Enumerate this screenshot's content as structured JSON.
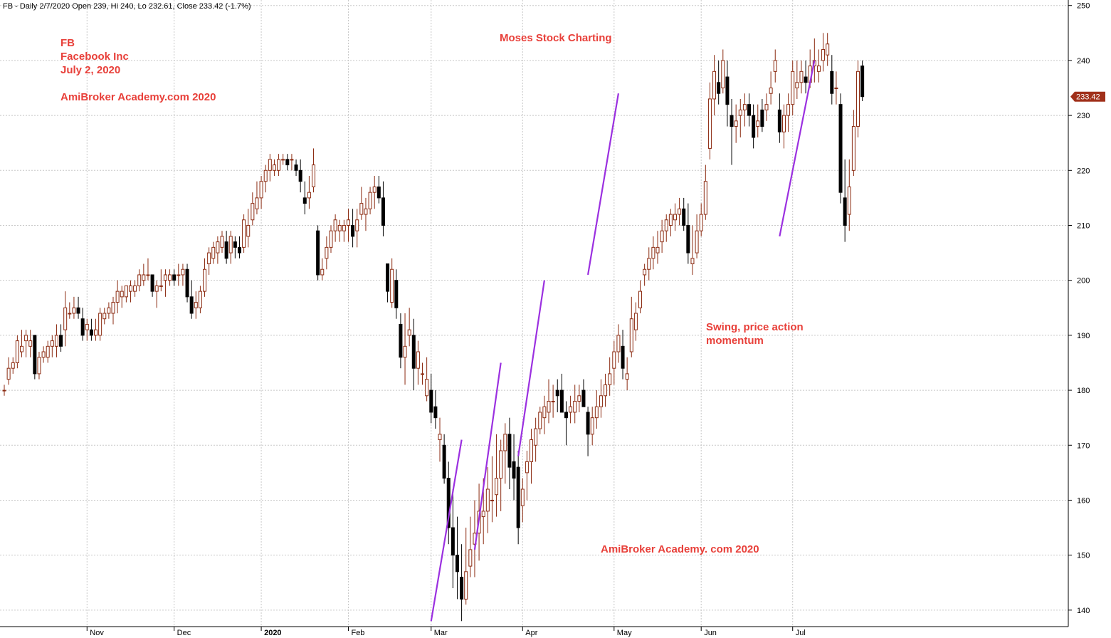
{
  "header": {
    "text": "FB - Daily 2/7/2020 Open 239, Hi 240, Lo 232.61, Close 233.42 (-1.7%)"
  },
  "annotations": {
    "symbol": "FB",
    "company": "Facebook Inc",
    "date": "July 2, 2020",
    "site_left": "AmiBroker Academy.com  2020",
    "title": "Moses Stock Charting",
    "note_line1": "Swing, price action",
    "note_line2": "momentum",
    "site_bottom": "AmiBroker Academy. com 2020"
  },
  "colors": {
    "annotation": "#e8403a",
    "up_candle": "#8b2a10",
    "down_candle": "#000000",
    "trendline": "#9b30e0",
    "grid": "#c8c8c8",
    "last_price_bg": "#a0301a"
  },
  "last_price_label": "233.42",
  "chart_data": {
    "type": "candlestick",
    "ylim": [
      137,
      251
    ],
    "y_ticks": [
      140,
      150,
      160,
      170,
      180,
      190,
      200,
      210,
      220,
      230,
      240,
      250
    ],
    "x_month_labels": [
      {
        "label": "Nov",
        "bar": 19
      },
      {
        "label": "Dec",
        "bar": 39
      },
      {
        "label": "2020",
        "bar": 59
      },
      {
        "label": "Feb",
        "bar": 79
      },
      {
        "label": "Mar",
        "bar": 98
      },
      {
        "label": "Apr",
        "bar": 119
      },
      {
        "label": "May",
        "bar": 140
      },
      {
        "label": "Jun",
        "bar": 160
      },
      {
        "label": "Jul",
        "bar": 181
      }
    ],
    "grid": true,
    "ohlc": [
      [
        180,
        181,
        179,
        180
      ],
      [
        182,
        186,
        181,
        184
      ],
      [
        184,
        186,
        183,
        185
      ],
      [
        185,
        190,
        184,
        189
      ],
      [
        187,
        191,
        186,
        188
      ],
      [
        189,
        191,
        186,
        190
      ],
      [
        188,
        191,
        186,
        189
      ],
      [
        190,
        190,
        182,
        183
      ],
      [
        183,
        187,
        182,
        186
      ],
      [
        186,
        188,
        185,
        187
      ],
      [
        186,
        189,
        185,
        188
      ],
      [
        188,
        190,
        186,
        189
      ],
      [
        188,
        192,
        186,
        190
      ],
      [
        190,
        192,
        187,
        188
      ],
      [
        191,
        198,
        188,
        195
      ],
      [
        194,
        196,
        193,
        194
      ],
      [
        194,
        197,
        193,
        195
      ],
      [
        195,
        197,
        193,
        194
      ],
      [
        193,
        195,
        189,
        190
      ],
      [
        191,
        193,
        189,
        192
      ],
      [
        191,
        193,
        189,
        190
      ],
      [
        190,
        193,
        189,
        191
      ],
      [
        190,
        195,
        189,
        194
      ],
      [
        193,
        195,
        192,
        194
      ],
      [
        194,
        196,
        193,
        195
      ],
      [
        194,
        197,
        192,
        196
      ],
      [
        196,
        200,
        194,
        198
      ],
      [
        197,
        199,
        195,
        198
      ],
      [
        197,
        199,
        196,
        199
      ],
      [
        198,
        200,
        196,
        199
      ],
      [
        198,
        200,
        197,
        199
      ],
      [
        199,
        202,
        198,
        201
      ],
      [
        200,
        203,
        199,
        201
      ],
      [
        201,
        204,
        200,
        201
      ],
      [
        201,
        201,
        197,
        198
      ],
      [
        198,
        200,
        195,
        199
      ],
      [
        199,
        202,
        198,
        199
      ],
      [
        200,
        202,
        197,
        201
      ],
      [
        200,
        202,
        199,
        201
      ],
      [
        201,
        202,
        199,
        200
      ],
      [
        201,
        203,
        199,
        201
      ],
      [
        201,
        203,
        199,
        202
      ],
      [
        202,
        203,
        196,
        197
      ],
      [
        197,
        200,
        193,
        194
      ],
      [
        195,
        198,
        193,
        196
      ],
      [
        195,
        199,
        194,
        198
      ],
      [
        198,
        204,
        197,
        202
      ],
      [
        203,
        206,
        201,
        205
      ],
      [
        204,
        207,
        203,
        206
      ],
      [
        205,
        208,
        203,
        207
      ],
      [
        206,
        209,
        205,
        208
      ],
      [
        207,
        209,
        203,
        204
      ],
      [
        205,
        209,
        203,
        208
      ],
      [
        207,
        208,
        204,
        206
      ],
      [
        206,
        208,
        204,
        205
      ],
      [
        206,
        212,
        205,
        211
      ],
      [
        208,
        213,
        206,
        210
      ],
      [
        211,
        216,
        210,
        214
      ],
      [
        213,
        218,
        212,
        215
      ],
      [
        215,
        219,
        213,
        218
      ],
      [
        218,
        221,
        216,
        220
      ],
      [
        220,
        223,
        218,
        222
      ],
      [
        220,
        222,
        219,
        221
      ],
      [
        220,
        223,
        219,
        222
      ],
      [
        222,
        223,
        221,
        222
      ],
      [
        222,
        223,
        220,
        221
      ],
      [
        222,
        223,
        220,
        222
      ],
      [
        221,
        222,
        219,
        220
      ],
      [
        220,
        222,
        216,
        218
      ],
      [
        215,
        218,
        212,
        214
      ],
      [
        215,
        219,
        213,
        216
      ],
      [
        217,
        224,
        216,
        221
      ],
      [
        209,
        210,
        200,
        201
      ],
      [
        201,
        204,
        200,
        202
      ],
      [
        204,
        208,
        202,
        206
      ],
      [
        206,
        210,
        205,
        209
      ],
      [
        209,
        212,
        207,
        211
      ],
      [
        209,
        211,
        207,
        210
      ],
      [
        209,
        211,
        207,
        210
      ],
      [
        210,
        213,
        207,
        211
      ],
      [
        210,
        213,
        206,
        208
      ],
      [
        209,
        213,
        206,
        211
      ],
      [
        212,
        217,
        211,
        214
      ],
      [
        212,
        215,
        209,
        213
      ],
      [
        213,
        217,
        212,
        216
      ],
      [
        216,
        219,
        213,
        217
      ],
      [
        217,
        219,
        214,
        215
      ],
      [
        215,
        218,
        208,
        210
      ],
      [
        203,
        203,
        196,
        198
      ],
      [
        196,
        204,
        195,
        202
      ],
      [
        200,
        202,
        193,
        195
      ],
      [
        192,
        194,
        184,
        186
      ],
      [
        186,
        194,
        181,
        188
      ],
      [
        190,
        195,
        188,
        191
      ],
      [
        190,
        193,
        180,
        184
      ],
      [
        184,
        189,
        181,
        187
      ],
      [
        183,
        185,
        181,
        183
      ],
      [
        179,
        186,
        178,
        182
      ],
      [
        180,
        183,
        174,
        176
      ],
      [
        177,
        180,
        173,
        175
      ],
      [
        171,
        175,
        167,
        172
      ],
      [
        170,
        172,
        163,
        164
      ],
      [
        164,
        167,
        152,
        155
      ],
      [
        155,
        162,
        144,
        150
      ],
      [
        150,
        157,
        142,
        147
      ],
      [
        146,
        152,
        138,
        142
      ],
      [
        142,
        155,
        141,
        147
      ],
      [
        148,
        157,
        146,
        151
      ],
      [
        152,
        160,
        146,
        154
      ],
      [
        154,
        163,
        149,
        158
      ],
      [
        157,
        164,
        152,
        158
      ],
      [
        158,
        166,
        154,
        162
      ],
      [
        160,
        168,
        156,
        160
      ],
      [
        161,
        172,
        157,
        164
      ],
      [
        164,
        171,
        158,
        169
      ],
      [
        169,
        174,
        163,
        172
      ],
      [
        172,
        175,
        162,
        166
      ],
      [
        167,
        172,
        160,
        164
      ],
      [
        166,
        169,
        152,
        155
      ],
      [
        159,
        164,
        156,
        162
      ],
      [
        165,
        169,
        160,
        167
      ],
      [
        167,
        173,
        163,
        171
      ],
      [
        170,
        175,
        167,
        173
      ],
      [
        173,
        177,
        172,
        176
      ],
      [
        175,
        179,
        172,
        177
      ],
      [
        176,
        182,
        174,
        178
      ],
      [
        178,
        181,
        175,
        178
      ],
      [
        180,
        182,
        176,
        179
      ],
      [
        180,
        183,
        176,
        176
      ],
      [
        176,
        178,
        170,
        175
      ],
      [
        176,
        179,
        174,
        177
      ],
      [
        176,
        181,
        174,
        178
      ],
      [
        178,
        181,
        176,
        179
      ],
      [
        180,
        182,
        177,
        177
      ],
      [
        176,
        177,
        168,
        172
      ],
      [
        172,
        177,
        170,
        175
      ],
      [
        175,
        180,
        173,
        177
      ],
      [
        177,
        182,
        175,
        179
      ],
      [
        179,
        183,
        177,
        181
      ],
      [
        181,
        186,
        179,
        183
      ],
      [
        184,
        189,
        181,
        187
      ],
      [
        187,
        192,
        185,
        190
      ],
      [
        188,
        191,
        182,
        184
      ],
      [
        182,
        186,
        180,
        183
      ],
      [
        187,
        197,
        186,
        193
      ],
      [
        191,
        196,
        189,
        194
      ],
      [
        195,
        200,
        194,
        198
      ],
      [
        201,
        203,
        199,
        202
      ],
      [
        202,
        206,
        200,
        204
      ],
      [
        204,
        208,
        202,
        206
      ],
      [
        205,
        209,
        203,
        206
      ],
      [
        207,
        211,
        205,
        209
      ],
      [
        209,
        212,
        207,
        211
      ],
      [
        210,
        213,
        208,
        212
      ],
      [
        211,
        214,
        209,
        212
      ],
      [
        212,
        215,
        210,
        213
      ],
      [
        213,
        215,
        209,
        210
      ],
      [
        210,
        214,
        203,
        205
      ],
      [
        203,
        210,
        201,
        204
      ],
      [
        205,
        212,
        204,
        209
      ],
      [
        209,
        214,
        208,
        212
      ],
      [
        212,
        221,
        211,
        218
      ],
      [
        224,
        236,
        222,
        233
      ],
      [
        233,
        241,
        230,
        238
      ],
      [
        236,
        240,
        232,
        234
      ],
      [
        235,
        242,
        234,
        240
      ],
      [
        237,
        240,
        228,
        232
      ],
      [
        230,
        233,
        221,
        228
      ],
      [
        228,
        232,
        225,
        229
      ],
      [
        230,
        233,
        226,
        231
      ],
      [
        231,
        234,
        228,
        232
      ],
      [
        232,
        234,
        228,
        230
      ],
      [
        230,
        232,
        224,
        226
      ],
      [
        228,
        232,
        226,
        229
      ],
      [
        231,
        233,
        227,
        228
      ],
      [
        231,
        234,
        229,
        232
      ],
      [
        234,
        238,
        232,
        235
      ],
      [
        238,
        242,
        236,
        240
      ],
      [
        231,
        234,
        225,
        227
      ],
      [
        227,
        232,
        224,
        230
      ],
      [
        230,
        234,
        227,
        232
      ],
      [
        232,
        240,
        230,
        238
      ],
      [
        235,
        240,
        233,
        236
      ],
      [
        236,
        240,
        234,
        238
      ],
      [
        237,
        240,
        234,
        236
      ],
      [
        236,
        242,
        235,
        239
      ],
      [
        239,
        244,
        236,
        240
      ],
      [
        238,
        242,
        236,
        239
      ],
      [
        240,
        245,
        238,
        242
      ],
      [
        241,
        245,
        239,
        243
      ],
      [
        238,
        241,
        232,
        234
      ],
      [
        235,
        238,
        232,
        235
      ],
      [
        232,
        234,
        214,
        216
      ],
      [
        215,
        222,
        207,
        210
      ],
      [
        212,
        222,
        209,
        217
      ],
      [
        220,
        231,
        219,
        228
      ],
      [
        228,
        240,
        226,
        238
      ],
      [
        239,
        240,
        232.61,
        233.42
      ]
    ]
  },
  "trendlines": [
    {
      "from": [
        98,
        138
      ],
      "to": [
        105,
        171
      ]
    },
    {
      "from": [
        108,
        151
      ],
      "to": [
        114,
        185
      ]
    },
    {
      "from": [
        118,
        168
      ],
      "to": [
        124,
        200
      ]
    },
    {
      "from": [
        134,
        201
      ],
      "to": [
        141,
        234
      ]
    },
    {
      "from": [
        178,
        208
      ],
      "to": [
        186,
        240
      ]
    }
  ]
}
